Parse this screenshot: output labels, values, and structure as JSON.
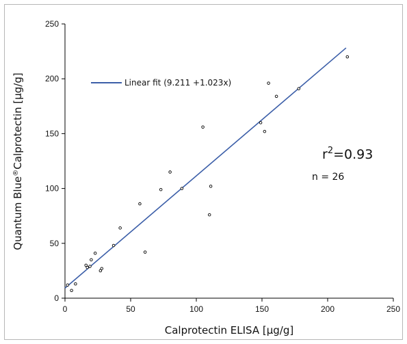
{
  "chart_data": {
    "type": "scatter",
    "title": "",
    "xlabel": "Calprotectin ELISA [µg/g]",
    "ylabel_main": "Quantum Blue",
    "ylabel_sup": "®",
    "ylabel_rest": "Calprotectin [µg/g]",
    "xlim": [
      0,
      250
    ],
    "ylim": [
      0,
      250
    ],
    "xticks": [
      0,
      50,
      100,
      150,
      200,
      250
    ],
    "yticks": [
      0,
      50,
      100,
      150,
      200,
      250
    ],
    "grid": false,
    "points": [
      {
        "x": 2,
        "y": 12
      },
      {
        "x": 5,
        "y": 7
      },
      {
        "x": 8,
        "y": 13
      },
      {
        "x": 16,
        "y": 30
      },
      {
        "x": 17,
        "y": 28
      },
      {
        "x": 19,
        "y": 29
      },
      {
        "x": 20,
        "y": 35
      },
      {
        "x": 23,
        "y": 41
      },
      {
        "x": 27,
        "y": 25
      },
      {
        "x": 28,
        "y": 27
      },
      {
        "x": 37,
        "y": 48
      },
      {
        "x": 42,
        "y": 64
      },
      {
        "x": 57,
        "y": 86
      },
      {
        "x": 61,
        "y": 42
      },
      {
        "x": 73,
        "y": 99
      },
      {
        "x": 80,
        "y": 115
      },
      {
        "x": 89,
        "y": 100
      },
      {
        "x": 105,
        "y": 156
      },
      {
        "x": 110,
        "y": 76
      },
      {
        "x": 111,
        "y": 102
      },
      {
        "x": 149,
        "y": 160
      },
      {
        "x": 152,
        "y": 152
      },
      {
        "x": 155,
        "y": 196
      },
      {
        "x": 161,
        "y": 184
      },
      {
        "x": 178,
        "y": 191
      },
      {
        "x": 215,
        "y": 220
      }
    ],
    "fit": {
      "label": "Linear fit (9.211  +1.023x)",
      "intercept": 9.211,
      "slope": 1.023,
      "x_range": [
        0,
        214
      ],
      "color": "#3b5ea8"
    },
    "legend_position": "top-left",
    "annotations": {
      "r2_base": "r",
      "r2_sup": "2",
      "r2_value": "=0.93",
      "n_label": "n = 26"
    }
  }
}
